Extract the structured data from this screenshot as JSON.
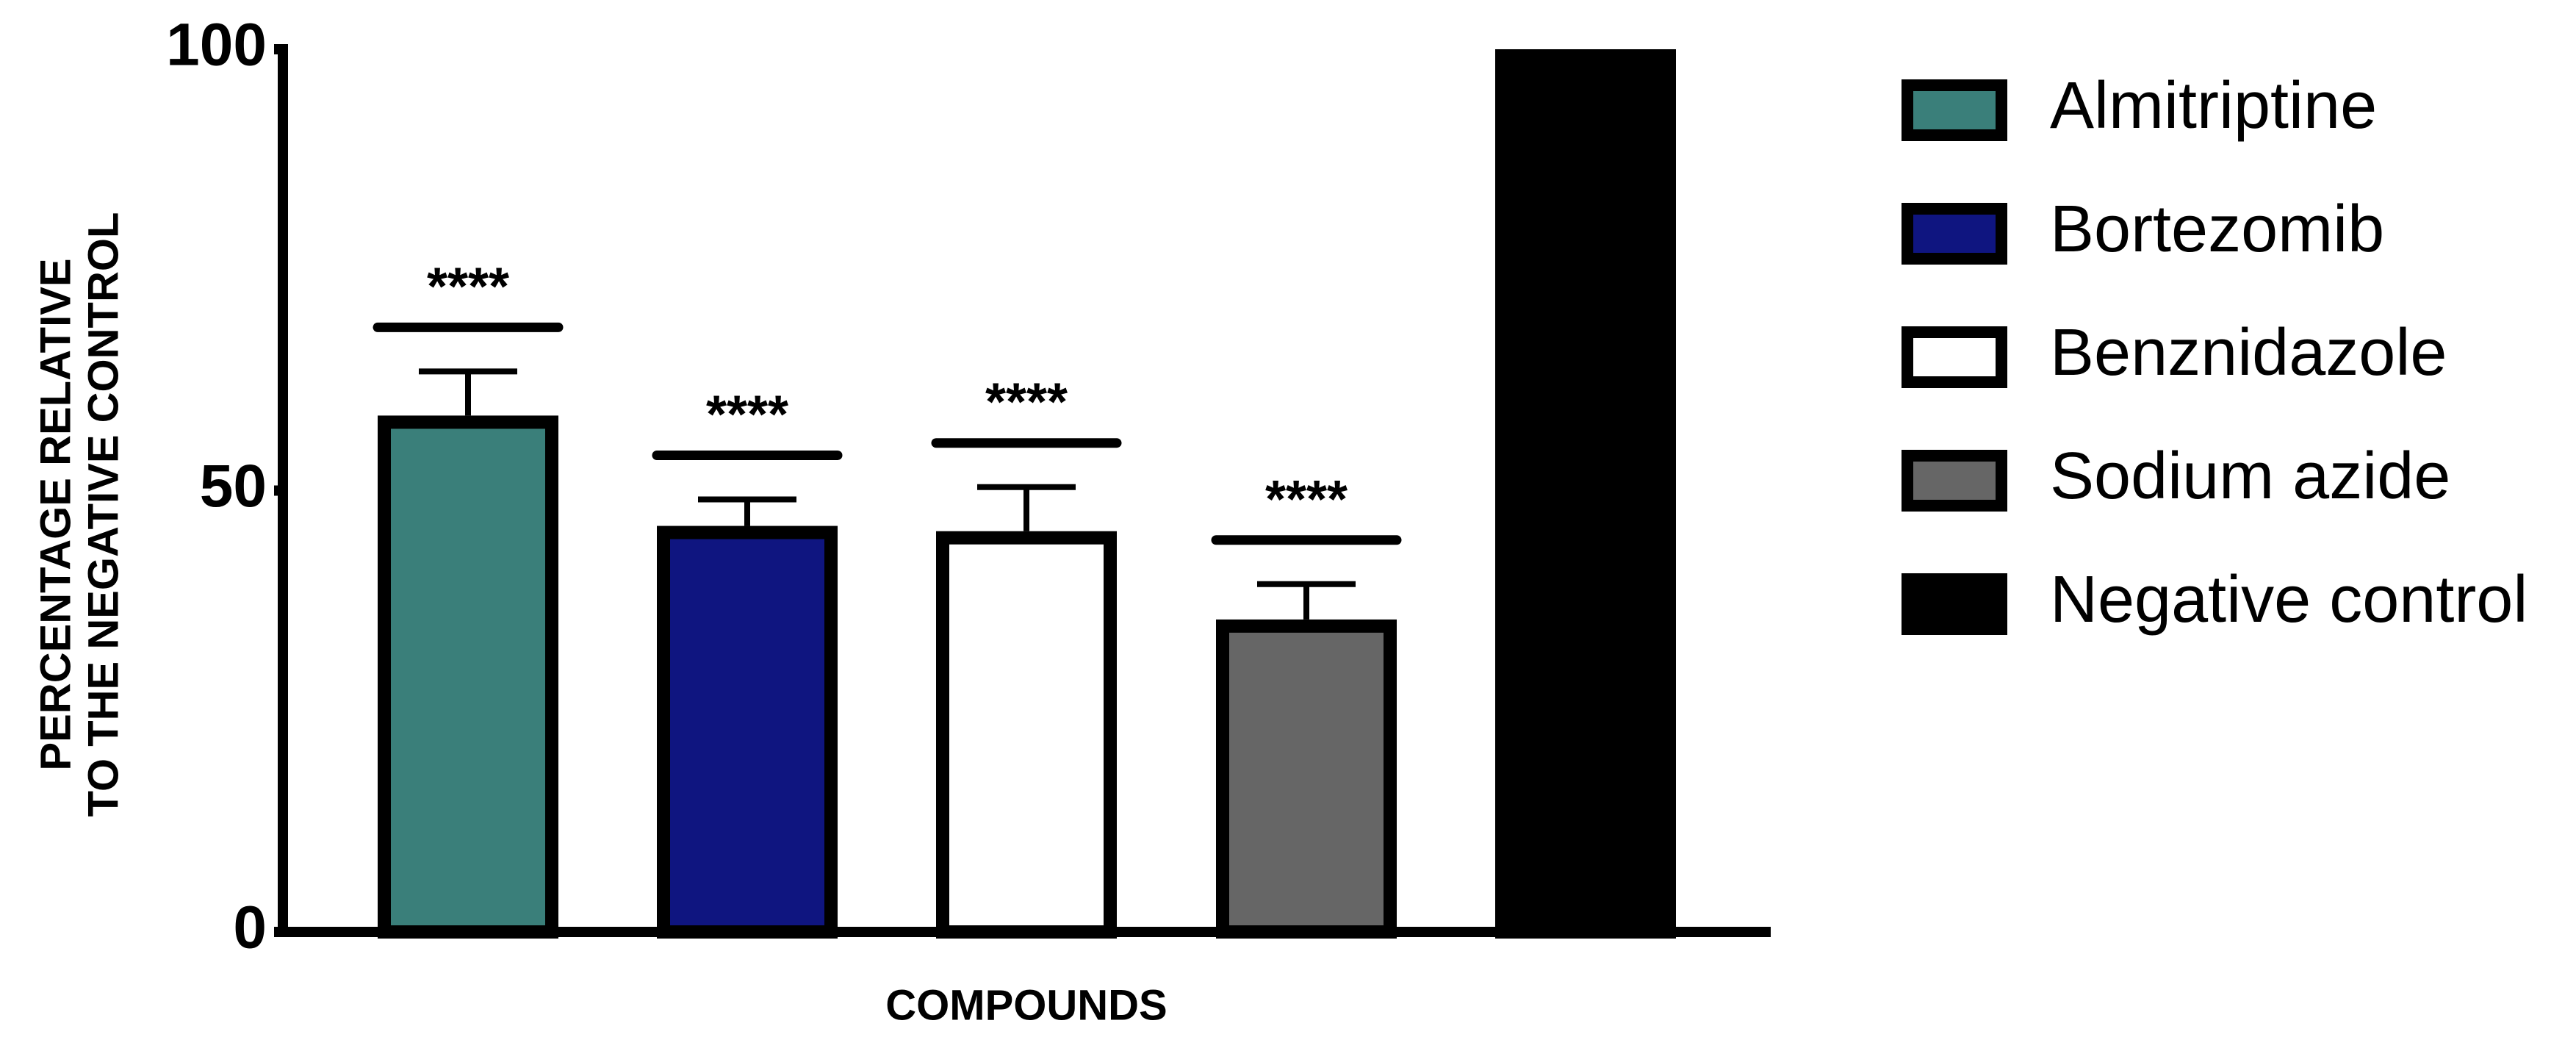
{
  "chart_data": {
    "type": "bar",
    "ylabel": [
      "PERCENTAGE RELATIVE",
      "TO THE NEGATIVE CONTROL"
    ],
    "xlabel": "COMPOUNDS",
    "ylim": [
      0,
      100
    ],
    "yticks": [
      0,
      50,
      100
    ],
    "series": [
      {
        "name": "Almitriptine",
        "color": "#3a7f7a",
        "values": [
          58.5
        ],
        "errors": [
          5
        ],
        "label": "****"
      },
      {
        "name": "Bortezomib",
        "color": "#0f1580",
        "values": [
          46
        ],
        "errors": [
          3
        ],
        "label": "****"
      },
      {
        "name": "Benznidazole",
        "color": "#ffffff",
        "values": [
          45.4
        ],
        "errors": [
          5
        ],
        "label": "****"
      },
      {
        "name": "Sodium azide",
        "color": "#666666",
        "values": [
          35.4
        ],
        "errors": [
          4
        ],
        "label": "****"
      },
      {
        "name": "Negative control",
        "color": "#000000",
        "values": [
          100
        ]
      }
    ]
  }
}
